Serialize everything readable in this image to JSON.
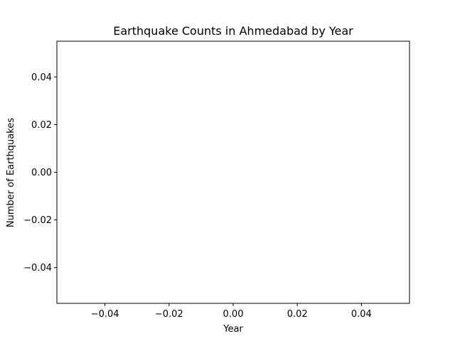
{
  "chart_data": {
    "type": "line",
    "title": "Earthquake Counts in Ahmedabad by Year",
    "xlabel": "Year",
    "ylabel": "Number of Earthquakes",
    "x": [],
    "series": [
      {
        "values": []
      }
    ],
    "xlim": [
      -0.055,
      0.055
    ],
    "ylim": [
      -0.055,
      0.055
    ],
    "xticks": [
      -0.04,
      -0.02,
      0.0,
      0.02,
      0.04
    ],
    "xtick_labels": [
      "−0.04",
      "−0.02",
      "0.00",
      "0.02",
      "0.04"
    ],
    "yticks": [
      -0.04,
      -0.02,
      0.0,
      0.02,
      0.04
    ],
    "ytick_labels": [
      "−0.04",
      "−0.02",
      "0.00",
      "0.02",
      "0.04"
    ],
    "grid": false,
    "legend": "none"
  }
}
